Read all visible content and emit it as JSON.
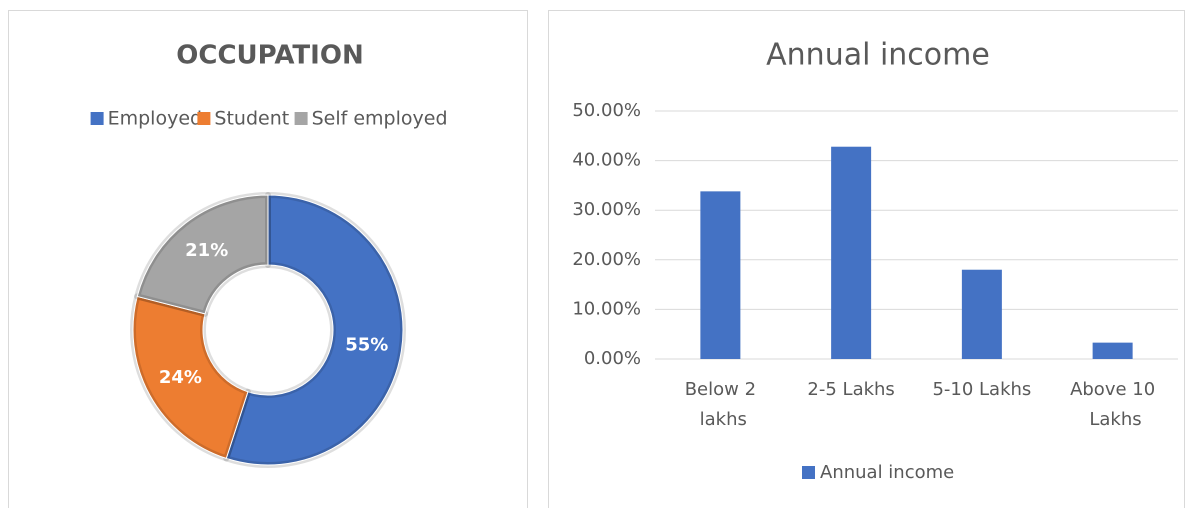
{
  "chart_data": [
    {
      "type": "donut",
      "title": "OCCUPATION",
      "categories": [
        "Employed",
        "Student",
        "Self employed"
      ],
      "values": [
        55,
        24,
        21
      ],
      "value_labels": [
        "55%",
        "24%",
        "21%"
      ],
      "colors": [
        "#4472c4",
        "#ed7d31",
        "#a5a5a5"
      ],
      "legend": "top"
    },
    {
      "type": "bar",
      "title": "Annual income",
      "categories": [
        "Below 2 lakhs",
        "2-5 Lakhs",
        "5-10 Lakhs",
        "Above 10 Lakhs"
      ],
      "series": [
        {
          "name": "Annual income",
          "color": "#4472c4",
          "values": [
            33.8,
            42.8,
            18,
            3.3
          ]
        }
      ],
      "ylim": [
        0,
        50
      ],
      "yticks": [
        {
          "value": 0,
          "label": "0.00%"
        },
        {
          "value": 10,
          "label": "10.00%"
        },
        {
          "value": 20,
          "label": "20.00%"
        },
        {
          "value": 30,
          "label": "30.00%"
        },
        {
          "value": 40,
          "label": "40.00%"
        },
        {
          "value": 50,
          "label": "50.00%"
        }
      ],
      "grid": true,
      "legend": "bottom"
    }
  ]
}
